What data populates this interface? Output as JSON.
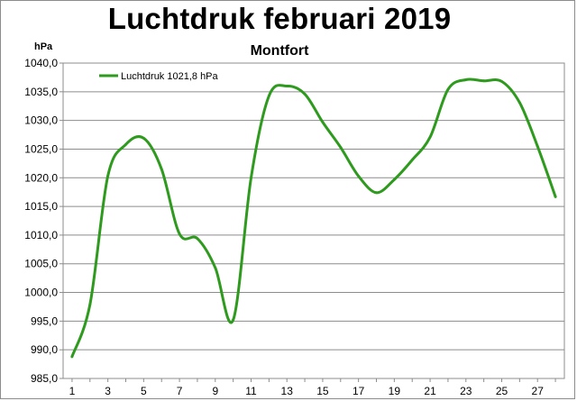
{
  "chart_data": {
    "type": "line",
    "title": "Luchtdruk februari 2019",
    "subtitle": "Montfort",
    "ylabel": "hPa",
    "xlabel": "",
    "ylim": [
      985,
      1040
    ],
    "yticks": [
      "985,0",
      "990,0",
      "995,0",
      "1000,0",
      "1005,0",
      "1010,0",
      "1015,0",
      "1020,0",
      "1025,0",
      "1030,0",
      "1035,0",
      "1040,0"
    ],
    "xticks": [
      "1",
      "3",
      "5",
      "7",
      "9",
      "11",
      "13",
      "15",
      "17",
      "19",
      "21",
      "23",
      "25",
      "27"
    ],
    "grid": true,
    "legend_position": "top-left",
    "series": [
      {
        "name": "Luchtdruk 1021,8 hPa",
        "color": "#2e9a1e",
        "x": [
          1,
          2,
          3,
          4,
          5,
          6,
          7,
          8,
          9,
          10,
          11,
          12,
          13,
          14,
          15,
          16,
          17,
          18,
          19,
          20,
          21,
          22,
          23,
          24,
          25,
          26,
          27,
          28
        ],
        "values": [
          988.8,
          997.9,
          1020.3,
          1025.8,
          1026.9,
          1021.5,
          1010.2,
          1009.4,
          1004.3,
          995.2,
          1020.0,
          1034.3,
          1036.0,
          1034.6,
          1029.7,
          1025.3,
          1020.3,
          1017.4,
          1019.7,
          1023.1,
          1027.1,
          1035.4,
          1037.1,
          1036.9,
          1036.8,
          1033.1,
          1025.5,
          1016.7
        ]
      }
    ]
  }
}
